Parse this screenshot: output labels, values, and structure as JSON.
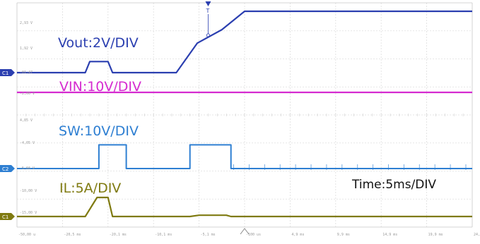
{
  "chart_data": {
    "type": "line",
    "title": "",
    "xlabel": "",
    "ylabel": "",
    "grid": true,
    "x_divisions": 10,
    "y_divisions": 8,
    "time_label": "Time:5ms/DIV",
    "x_tick_labels": [
      "-50,00 u",
      "-20,5 ms",
      "-20,1 ms",
      "-10,1 ms",
      "-5,1 ms",
      "-100 us",
      "4,9 ms",
      "9,9 ms",
      "14,9 ms",
      "19,9 ms",
      "24,9 ms"
    ],
    "trigger_marker": "T",
    "series": [
      {
        "name": "Vout:2V/DIV",
        "channel_marker": "C1",
        "color": "#2b3fb0",
        "scale_labels": [
          "2,93 V",
          "1,92 V",
          "-01,47"
        ],
        "points": [
          [
            -25,
            0
          ],
          [
            -17.5,
            0
          ],
          [
            -17,
            0.9
          ],
          [
            -15,
            0.9
          ],
          [
            -14.5,
            0
          ],
          [
            -7.5,
            0
          ],
          [
            -5.2,
            2.4
          ],
          [
            -2.5,
            3.5
          ],
          [
            0,
            5
          ],
          [
            25,
            5
          ]
        ]
      },
      {
        "name": "VIN:10V/DIV",
        "channel_marker": "",
        "color": "#d52bd0",
        "scale_labels": [
          "-2,00 V"
        ],
        "points": [
          [
            -25,
            12
          ],
          [
            25,
            12
          ]
        ]
      },
      {
        "name": "SW:10V/DIV",
        "channel_marker": "C2",
        "color": "#2e7fd2",
        "scale_labels": [
          "4,85 V",
          "-4,05 V",
          "-5,66 V"
        ],
        "points": [
          [
            -25,
            0
          ],
          [
            -16,
            0
          ],
          [
            -16,
            12
          ],
          [
            -13,
            12
          ],
          [
            -13,
            0
          ],
          [
            -6,
            0
          ],
          [
            -6,
            12
          ],
          [
            -1.5,
            12
          ],
          [
            -1.5,
            0
          ],
          [
            25,
            0
          ]
        ]
      },
      {
        "name": "IL:5A/DIV",
        "channel_marker": "C1",
        "color": "#7f7a10",
        "scale_labels": [
          "-10,00 V",
          "-15,00 V"
        ],
        "points": [
          [
            -25,
            0
          ],
          [
            -17.5,
            0
          ],
          [
            -16.2,
            4.5
          ],
          [
            -15,
            4.5
          ],
          [
            -14.5,
            0
          ],
          [
            -6,
            0
          ],
          [
            -5,
            0.3
          ],
          [
            -2,
            0.3
          ],
          [
            -1.5,
            0
          ],
          [
            25,
            0
          ]
        ]
      }
    ]
  }
}
